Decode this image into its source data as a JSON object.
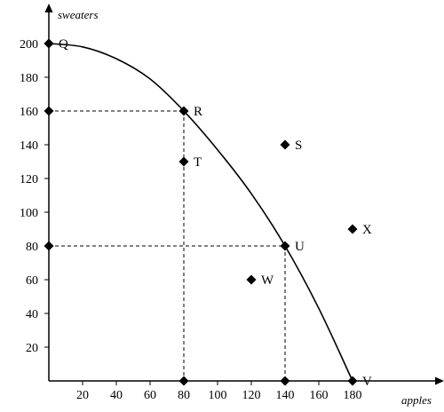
{
  "chart_data": {
    "type": "line",
    "title": "",
    "xlabel": "apples",
    "ylabel": "sweaters",
    "xlim": [
      0,
      190
    ],
    "ylim": [
      0,
      215
    ],
    "x_ticks": [
      20,
      40,
      60,
      80,
      100,
      120,
      140,
      160,
      180
    ],
    "y_ticks": [
      20,
      40,
      60,
      80,
      100,
      120,
      140,
      160,
      180,
      200
    ],
    "grid": false,
    "legend": "none",
    "curve": [
      {
        "x": 0,
        "y": 200
      },
      {
        "x": 20,
        "y": 198
      },
      {
        "x": 40,
        "y": 191
      },
      {
        "x": 60,
        "y": 179
      },
      {
        "x": 80,
        "y": 160
      },
      {
        "x": 100,
        "y": 137
      },
      {
        "x": 120,
        "y": 111
      },
      {
        "x": 140,
        "y": 80
      },
      {
        "x": 160,
        "y": 43
      },
      {
        "x": 180,
        "y": 0
      }
    ],
    "points": [
      {
        "label": "Q",
        "x": 0,
        "y": 200
      },
      {
        "label": "R",
        "x": 80,
        "y": 160
      },
      {
        "label": "S",
        "x": 140,
        "y": 140
      },
      {
        "label": "T",
        "x": 80,
        "y": 130
      },
      {
        "label": "U",
        "x": 140,
        "y": 80
      },
      {
        "label": "W",
        "x": 120,
        "y": 60
      },
      {
        "label": "X",
        "x": 180,
        "y": 90
      },
      {
        "label": "V",
        "x": 180,
        "y": 0
      }
    ],
    "axis_markers": [
      {
        "x": 0,
        "y": 200
      },
      {
        "x": 0,
        "y": 160
      },
      {
        "x": 0,
        "y": 80
      },
      {
        "x": 80,
        "y": 0
      },
      {
        "x": 140,
        "y": 0
      }
    ],
    "guides": [
      {
        "x": 80,
        "y": 160
      },
      {
        "x": 140,
        "y": 80
      }
    ]
  }
}
